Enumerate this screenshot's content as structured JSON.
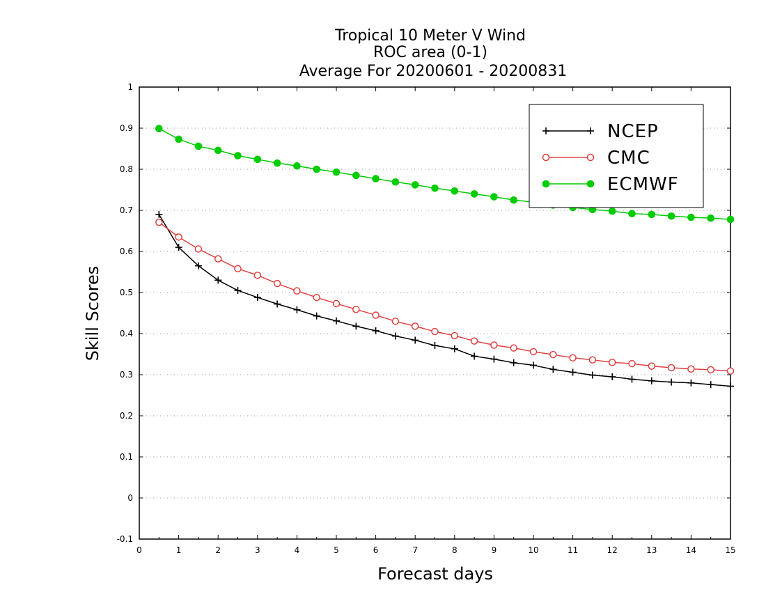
{
  "chart_data": {
    "type": "line",
    "title_lines": [
      "Tropical 10 Meter V Wind",
      "ROC area (0-1)",
      "Average For 20200601 - 20200831"
    ],
    "xlabel": "Forecast days",
    "ylabel": "Skill Scores",
    "xlim": [
      0,
      15
    ],
    "ylim": [
      -0.1,
      1
    ],
    "x_ticks": [
      "0",
      "1",
      "2",
      "3",
      "4",
      "5",
      "6",
      "7",
      "8",
      "9",
      "10",
      "11",
      "12",
      "13",
      "14",
      "15"
    ],
    "y_ticks": [
      "-0.1",
      "0",
      "0.1",
      "0.2",
      "0.3",
      "0.4",
      "0.5",
      "0.6",
      "0.7",
      "0.8",
      "0.9",
      "1"
    ],
    "grid": "horizontal dotted",
    "legend_position": "top-right",
    "x": [
      0.5,
      1,
      1.5,
      2,
      2.5,
      3,
      3.5,
      4,
      4.5,
      5,
      5.5,
      6,
      6.5,
      7,
      7.5,
      8,
      8.5,
      9,
      9.5,
      10,
      10.5,
      11,
      11.5,
      12,
      12.5,
      13,
      13.5,
      14,
      14.5,
      15
    ],
    "series": [
      {
        "name": "NCEP",
        "color": "#000000",
        "marker": "plus",
        "values": [
          0.69,
          0.61,
          0.565,
          0.53,
          0.505,
          0.488,
          0.472,
          0.458,
          0.443,
          0.431,
          0.418,
          0.407,
          0.394,
          0.384,
          0.371,
          0.363,
          0.345,
          0.338,
          0.329,
          0.323,
          0.313,
          0.306,
          0.299,
          0.295,
          0.289,
          0.285,
          0.282,
          0.28,
          0.276,
          0.272
        ]
      },
      {
        "name": "CMC",
        "color": "#e04040",
        "marker": "open-circle",
        "values": [
          0.671,
          0.635,
          0.606,
          0.582,
          0.558,
          0.542,
          0.522,
          0.504,
          0.488,
          0.473,
          0.459,
          0.445,
          0.43,
          0.418,
          0.405,
          0.395,
          0.382,
          0.372,
          0.365,
          0.356,
          0.349,
          0.341,
          0.336,
          0.33,
          0.327,
          0.321,
          0.317,
          0.314,
          0.312,
          0.309
        ]
      },
      {
        "name": "ECMWF",
        "color": "#00cc00",
        "marker": "filled-circle",
        "values": [
          0.899,
          0.873,
          0.856,
          0.846,
          0.833,
          0.824,
          0.815,
          0.808,
          0.8,
          0.793,
          0.785,
          0.777,
          0.769,
          0.762,
          0.754,
          0.747,
          0.74,
          0.733,
          0.725,
          0.72,
          0.713,
          0.707,
          0.702,
          0.698,
          0.692,
          0.69,
          0.686,
          0.683,
          0.681,
          0.678
        ]
      }
    ]
  }
}
